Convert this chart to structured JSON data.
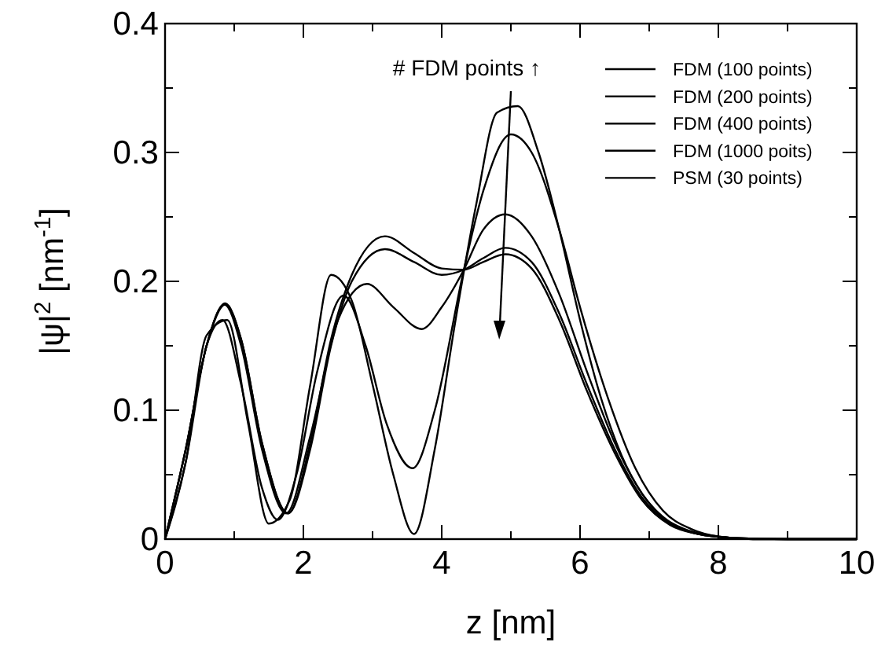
{
  "chart_data": {
    "type": "line",
    "xlabel": "z [nm]",
    "ylabel": "|ψ|$^{2}$ [nm$^{-1}$]",
    "xlim": [
      0,
      10
    ],
    "ylim": [
      0,
      0.4
    ],
    "xticks": [
      0,
      {
        "value": 1,
        "label": null
      },
      2,
      {
        "value": 3,
        "label": null
      },
      4,
      {
        "value": 5,
        "label": null
      },
      6,
      {
        "value": 7,
        "label": null
      },
      8,
      {
        "value": 9,
        "label": null
      },
      10
    ],
    "yticks": [
      0,
      {
        "value": 0.05,
        "label": null
      },
      0.1,
      {
        "value": 0.15,
        "label": null
      },
      0.2,
      {
        "value": 0.25,
        "label": null
      },
      0.3,
      {
        "value": 0.35,
        "label": null
      },
      0.4
    ],
    "grid": false,
    "legend": "top right",
    "marker": "none",
    "line_style": "solid",
    "annotations": [
      "# FDM points ↑"
    ],
    "series": [
      {
        "name": "FDM (100 points)",
        "color": "#000000",
        "x": [
          0,
          0.3,
          0.6,
          0.9,
          1.2,
          1.5,
          1.8,
          2.1,
          2.4,
          2.7,
          3.0,
          3.3,
          3.6,
          3.9,
          4.2,
          4.5,
          4.8,
          5.1,
          5.4,
          5.7,
          6.0,
          6.3,
          6.6,
          6.9,
          7.2,
          7.5,
          8.0,
          8.5,
          10
        ],
        "values": [
          0,
          0.06,
          0.158,
          0.17,
          0.09,
          0.012,
          0.03,
          0.12,
          0.205,
          0.185,
          0.12,
          0.05,
          0.004,
          0.07,
          0.17,
          0.26,
          0.331,
          0.336,
          0.3,
          0.24,
          0.17,
          0.11,
          0.065,
          0.035,
          0.017,
          0.008,
          0.002,
          0,
          0
        ]
      },
      {
        "name": "FDM (200 points)",
        "color": "#000000",
        "x": [
          0,
          0.3,
          0.6,
          0.83,
          1.1,
          1.4,
          1.63,
          1.9,
          2.2,
          2.58,
          2.9,
          3.2,
          3.58,
          3.9,
          4.32,
          4.6,
          5.0,
          5.3,
          5.7,
          6.0,
          6.4,
          6.8,
          7.2,
          7.6,
          8.0,
          8.5,
          10
        ],
        "values": [
          0,
          0.06,
          0.15,
          0.17,
          0.12,
          0.04,
          0.015,
          0.05,
          0.13,
          0.189,
          0.15,
          0.09,
          0.055,
          0.1,
          0.209,
          0.27,
          0.314,
          0.3,
          0.24,
          0.18,
          0.11,
          0.055,
          0.022,
          0.008,
          0.002,
          0,
          0
        ]
      },
      {
        "name": "FDM (400 points)",
        "color": "#000000",
        "x": [
          0,
          0.3,
          0.6,
          0.86,
          1.1,
          1.4,
          1.75,
          2.1,
          2.5,
          2.92,
          3.3,
          3.71,
          4.0,
          4.32,
          4.6,
          4.92,
          5.3,
          5.7,
          6.1,
          6.5,
          6.9,
          7.3,
          7.7,
          8.2,
          9,
          10
        ],
        "values": [
          0,
          0.07,
          0.15,
          0.182,
          0.15,
          0.07,
          0.02,
          0.08,
          0.17,
          0.198,
          0.18,
          0.163,
          0.18,
          0.209,
          0.24,
          0.252,
          0.235,
          0.19,
          0.13,
          0.075,
          0.035,
          0.013,
          0.004,
          0.001,
          0,
          0
        ]
      },
      {
        "name": "FDM (1000 poits)",
        "color": "#000000",
        "x": [
          0,
          0.3,
          0.6,
          0.87,
          1.1,
          1.4,
          1.78,
          2.1,
          2.4,
          2.7,
          3.18,
          3.6,
          4.0,
          4.32,
          4.6,
          4.92,
          5.3,
          5.7,
          6.1,
          6.5,
          6.9,
          7.3,
          7.7,
          8.2,
          9,
          10
        ],
        "values": [
          0,
          0.07,
          0.15,
          0.183,
          0.155,
          0.075,
          0.02,
          0.07,
          0.15,
          0.2,
          0.225,
          0.215,
          0.205,
          0.209,
          0.218,
          0.226,
          0.215,
          0.175,
          0.12,
          0.07,
          0.032,
          0.012,
          0.004,
          0.001,
          0,
          0
        ]
      },
      {
        "name": "PSM (30 points)",
        "color": "#000000",
        "x": [
          0,
          0.3,
          0.6,
          0.87,
          1.1,
          1.4,
          1.78,
          2.1,
          2.4,
          2.7,
          3.18,
          3.6,
          4.0,
          4.32,
          4.6,
          4.92,
          5.3,
          5.7,
          6.1,
          6.5,
          6.9,
          7.3,
          7.7,
          8.2,
          9,
          10
        ],
        "values": [
          0,
          0.07,
          0.15,
          0.182,
          0.155,
          0.075,
          0.02,
          0.075,
          0.155,
          0.205,
          0.235,
          0.222,
          0.21,
          0.209,
          0.215,
          0.221,
          0.21,
          0.17,
          0.115,
          0.067,
          0.03,
          0.011,
          0.004,
          0.001,
          0,
          0
        ]
      }
    ]
  }
}
